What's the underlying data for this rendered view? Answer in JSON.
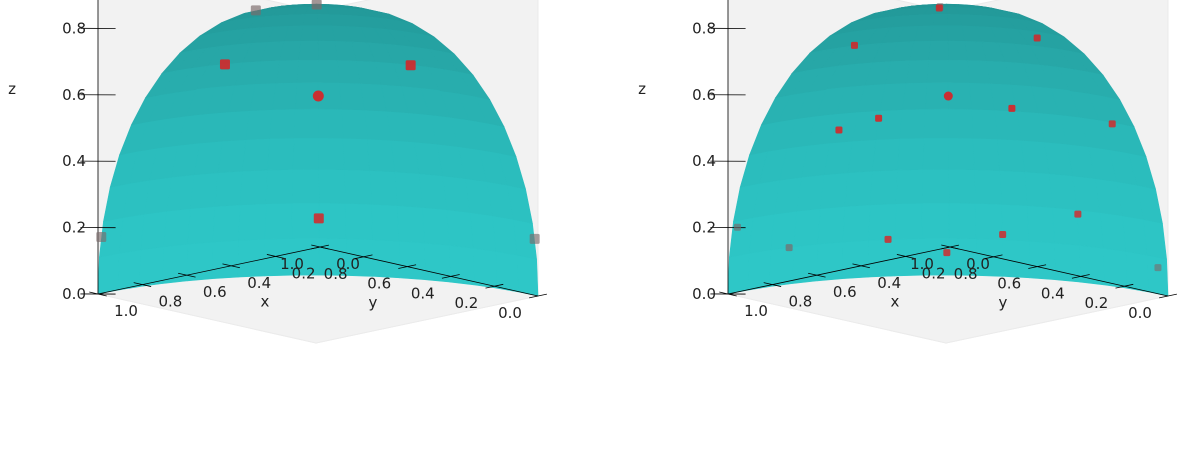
{
  "chart_data": [
    {
      "type": "scatter",
      "subtype": "3d-scatter-on-sphere-octant",
      "surface_color": "#2ec8c8",
      "marker_color": "#e41a1c",
      "xlabel": "x",
      "ylabel": "y",
      "zlabel": "z",
      "xlim": [
        0,
        1
      ],
      "ylim": [
        0,
        1
      ],
      "zlim": [
        0,
        1
      ],
      "ticks": [
        "0.0",
        "0.2",
        "0.4",
        "0.6",
        "0.8",
        "1.0"
      ],
      "grid": false,
      "points": [
        {
          "x": 0.577,
          "y": 0.577,
          "z": 0.577
        },
        {
          "x": 0.171,
          "y": 0.171,
          "z": 0.97
        },
        {
          "x": 0.664,
          "y": 0.242,
          "z": 0.707
        },
        {
          "x": 0.242,
          "y": 0.664,
          "z": 0.707
        },
        {
          "x": 0.985,
          "y": 0.0,
          "z": 0.174
        },
        {
          "x": 0.0,
          "y": 0.985,
          "z": 0.174
        },
        {
          "x": 0.696,
          "y": 0.696,
          "z": 0.174
        },
        {
          "x": 0.0,
          "y": 0.276,
          "z": 0.961
        }
      ]
    },
    {
      "type": "scatter",
      "subtype": "3d-scatter-on-sphere-octant",
      "surface_color": "#2ec8c8",
      "marker_color": "#e41a1c",
      "xlabel": "x",
      "ylabel": "y",
      "zlabel": "z",
      "xlim": [
        0,
        1
      ],
      "ylim": [
        0,
        1
      ],
      "zlim": [
        0,
        1
      ],
      "ticks": [
        "0.0",
        "0.2",
        "0.4",
        "0.6",
        "0.8",
        "1.0"
      ],
      "grid": false,
      "points": [
        {
          "x": 0.577,
          "y": 0.577,
          "z": 0.577
        },
        {
          "x": 0.042,
          "y": 0.07,
          "z": 0.997
        },
        {
          "x": 0.228,
          "y": 0.263,
          "z": 0.938
        },
        {
          "x": 0.173,
          "y": 0.596,
          "z": 0.784
        },
        {
          "x": 0.556,
          "y": 0.148,
          "z": 0.818
        },
        {
          "x": 0.322,
          "y": 0.819,
          "z": 0.475
        },
        {
          "x": 0.845,
          "y": 0.098,
          "z": 0.526
        },
        {
          "x": 0.721,
          "y": 0.432,
          "z": 0.541
        },
        {
          "x": 0.43,
          "y": 0.747,
          "z": 0.506
        },
        {
          "x": 0.022,
          "y": 0.979,
          "z": 0.201
        },
        {
          "x": 0.92,
          "y": 0.332,
          "z": 0.209
        },
        {
          "x": 0.813,
          "y": 0.568,
          "z": 0.128
        },
        {
          "x": 0.551,
          "y": 0.827,
          "z": 0.112
        },
        {
          "x": 0.996,
          "y": 0.042,
          "z": 0.08
        },
        {
          "x": 0.24,
          "y": 0.964,
          "z": 0.111
        },
        {
          "x": 0.701,
          "y": 0.71,
          "z": 0.068
        }
      ]
    }
  ]
}
